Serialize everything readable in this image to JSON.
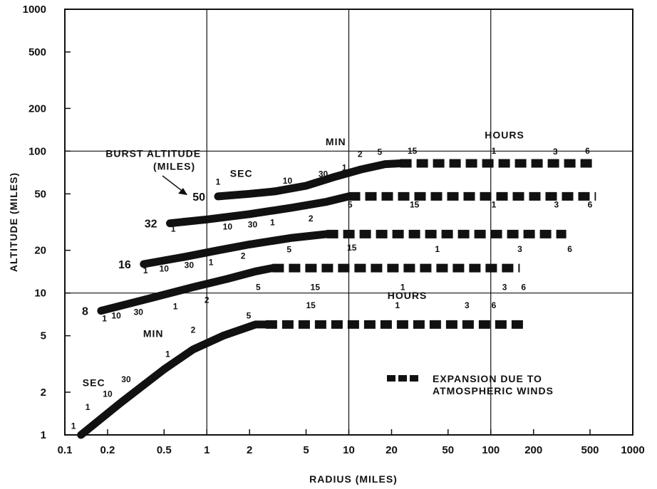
{
  "chart_data": {
    "type": "line",
    "title": "",
    "xlabel": "RADIUS (MILES)",
    "ylabel": "ALTITUDE (MILES)",
    "xscale": "log",
    "yscale": "log",
    "xlim": [
      0.1,
      1000
    ],
    "ylim": [
      1,
      1000
    ],
    "grid": "major decades only",
    "x_ticks": [
      {
        "v": 0.1,
        "label": "0.1"
      },
      {
        "v": 0.2,
        "label": "0.2"
      },
      {
        "v": 0.5,
        "label": "0.5"
      },
      {
        "v": 1,
        "label": "1"
      },
      {
        "v": 2,
        "label": "2"
      },
      {
        "v": 5,
        "label": "5"
      },
      {
        "v": 10,
        "label": "10"
      },
      {
        "v": 20,
        "label": "20"
      },
      {
        "v": 50,
        "label": "50"
      },
      {
        "v": 100,
        "label": "100"
      },
      {
        "v": 200,
        "label": "200"
      },
      {
        "v": 500,
        "label": "500"
      },
      {
        "v": 1000,
        "label": "1000"
      }
    ],
    "y_ticks": [
      {
        "v": 1,
        "label": "1"
      },
      {
        "v": 2,
        "label": "2"
      },
      {
        "v": 5,
        "label": "5"
      },
      {
        "v": 10,
        "label": "10"
      },
      {
        "v": 20,
        "label": "20"
      },
      {
        "v": 50,
        "label": "50"
      },
      {
        "v": 100,
        "label": "100"
      },
      {
        "v": 200,
        "label": "200"
      },
      {
        "v": 500,
        "label": "500"
      },
      {
        "v": 1000,
        "label": "1000"
      }
    ],
    "series": [
      {
        "name": "50",
        "solid": [
          [
            1.2,
            48
          ],
          [
            2,
            50
          ],
          [
            3,
            52
          ],
          [
            5,
            57
          ],
          [
            8,
            66
          ],
          [
            12,
            74
          ],
          [
            18,
            81
          ],
          [
            23,
            82
          ]
        ],
        "dashed": [
          [
            23,
            82
          ],
          [
            550,
            82
          ]
        ],
        "time_marks": [
          {
            "label": "1",
            "x": 1.2,
            "y": 58
          },
          {
            "label": "10",
            "x": 3.7,
            "y": 59
          },
          {
            "label": "30",
            "x": 6.6,
            "y": 66
          },
          {
            "label": "1",
            "x": 9.3,
            "y": 73
          },
          {
            "label": "2",
            "x": 12,
            "y": 91
          },
          {
            "label": "5",
            "x": 16.5,
            "y": 94
          },
          {
            "label": "15",
            "x": 28,
            "y": 96
          },
          {
            "label": "1",
            "x": 105,
            "y": 96
          },
          {
            "label": "3",
            "x": 285,
            "y": 95
          },
          {
            "label": "6",
            "x": 480,
            "y": 96
          }
        ]
      },
      {
        "name": "32",
        "solid": [
          [
            0.55,
            31
          ],
          [
            1,
            33
          ],
          [
            2,
            36
          ],
          [
            4,
            40
          ],
          [
            7,
            44
          ],
          [
            10,
            48
          ]
        ],
        "dashed": [
          [
            10,
            48
          ],
          [
            550,
            48
          ]
        ],
        "time_marks": [
          {
            "label": "1",
            "x": 0.58,
            "y": 27
          },
          {
            "label": "10",
            "x": 1.4,
            "y": 28
          },
          {
            "label": "30",
            "x": 2.1,
            "y": 29
          },
          {
            "label": "1",
            "x": 2.9,
            "y": 30
          },
          {
            "label": "2",
            "x": 5.4,
            "y": 32
          },
          {
            "label": "5",
            "x": 10.2,
            "y": 40
          },
          {
            "label": "15",
            "x": 29,
            "y": 40
          },
          {
            "label": "1",
            "x": 105,
            "y": 40
          },
          {
            "label": "3",
            "x": 290,
            "y": 40
          },
          {
            "label": "6",
            "x": 500,
            "y": 40
          }
        ]
      },
      {
        "name": "16",
        "solid": [
          [
            0.36,
            16
          ],
          [
            0.7,
            18
          ],
          [
            1.2,
            20
          ],
          [
            2,
            22
          ],
          [
            4,
            24.5
          ],
          [
            7,
            26
          ]
        ],
        "dashed": [
          [
            7,
            26
          ],
          [
            340,
            26
          ]
        ],
        "time_marks": [
          {
            "label": "1",
            "x": 0.37,
            "y": 13.8
          },
          {
            "label": "10",
            "x": 0.5,
            "y": 14.2
          },
          {
            "label": "30",
            "x": 0.75,
            "y": 15
          },
          {
            "label": "1",
            "x": 1.07,
            "y": 15.7
          },
          {
            "label": "2",
            "x": 1.8,
            "y": 17.4
          },
          {
            "label": "5",
            "x": 3.8,
            "y": 19.4
          },
          {
            "label": "15",
            "x": 10.5,
            "y": 19.9
          },
          {
            "label": "1",
            "x": 42,
            "y": 19.5
          },
          {
            "label": "3",
            "x": 160,
            "y": 19.5
          },
          {
            "label": "6",
            "x": 360,
            "y": 19.5
          }
        ]
      },
      {
        "name": "8",
        "solid": [
          [
            0.18,
            7.5
          ],
          [
            0.4,
            9.2
          ],
          [
            0.8,
            11
          ],
          [
            1.4,
            12.6
          ],
          [
            2.2,
            14.2
          ],
          [
            2.9,
            15
          ]
        ],
        "dashed": [
          [
            2.9,
            15
          ],
          [
            160,
            15
          ]
        ],
        "time_marks": [
          {
            "label": "1",
            "x": 0.19,
            "y": 6.3
          },
          {
            "label": "10",
            "x": 0.23,
            "y": 6.6
          },
          {
            "label": "30",
            "x": 0.33,
            "y": 7
          },
          {
            "label": "1",
            "x": 0.6,
            "y": 7.7
          },
          {
            "label": "2",
            "x": 1,
            "y": 8.5
          },
          {
            "label": "5",
            "x": 2.3,
            "y": 10.5
          },
          {
            "label": "15",
            "x": 5.8,
            "y": 10.5
          },
          {
            "label": "1",
            "x": 24,
            "y": 10.5
          },
          {
            "label": "3",
            "x": 125,
            "y": 10.5
          },
          {
            "label": "6",
            "x": 170,
            "y": 10.5
          }
        ]
      },
      {
        "name": "",
        "solid": [
          [
            0.13,
            1
          ],
          [
            0.25,
            1.7
          ],
          [
            0.5,
            2.9
          ],
          [
            0.8,
            4
          ],
          [
            1.3,
            5
          ],
          [
            2.2,
            6
          ],
          [
            2.6,
            6
          ]
        ],
        "dashed": [
          [
            2.6,
            6
          ],
          [
            180,
            6
          ]
        ],
        "time_marks": [
          {
            "label": "1",
            "x": 0.115,
            "y": 1.1
          },
          {
            "label": "1",
            "x": 0.145,
            "y": 1.5
          },
          {
            "label": "10",
            "x": 0.2,
            "y": 1.85
          },
          {
            "label": "30",
            "x": 0.27,
            "y": 2.35
          },
          {
            "label": "1",
            "x": 0.53,
            "y": 3.55
          },
          {
            "label": "2",
            "x": 0.8,
            "y": 5.25
          },
          {
            "label": "5",
            "x": 1.97,
            "y": 6.6
          },
          {
            "label": "15",
            "x": 5.4,
            "y": 7.8
          },
          {
            "label": "1",
            "x": 22,
            "y": 7.8
          },
          {
            "label": "3",
            "x": 68,
            "y": 7.8
          },
          {
            "label": "6",
            "x": 105,
            "y": 7.8
          }
        ]
      }
    ],
    "annotations": [
      {
        "text": "BURST ALTITUDE",
        "x": 0.42,
        "y": 91
      },
      {
        "text": "(MILES)",
        "x": 0.59,
        "y": 74
      },
      {
        "text": "SEC",
        "x": 1.75,
        "y": 66
      },
      {
        "text": "MIN",
        "x": 8.1,
        "y": 110
      },
      {
        "text": "HOURS",
        "x": 125,
        "y": 123
      },
      {
        "text": "HOURS",
        "x": 25.8,
        "y": 9.1
      },
      {
        "text": "MIN",
        "x": 0.42,
        "y": 4.9
      },
      {
        "text": "SEC",
        "x": 0.16,
        "y": 2.2
      }
    ],
    "legend": {
      "position": "lower-right",
      "entries": [
        "EXPANSION DUE TO",
        "ATMOSPHERIC WINDS"
      ]
    }
  }
}
